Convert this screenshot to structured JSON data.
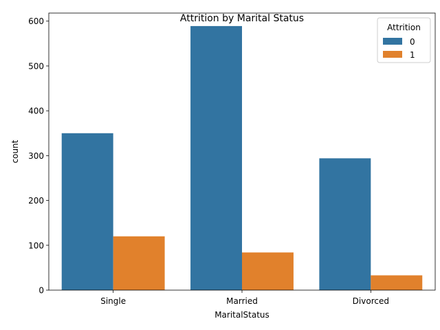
{
  "chart_data": {
    "type": "bar",
    "title": "Attrition by Marital Status",
    "xlabel": "MaritalStatus",
    "ylabel": "count",
    "categories": [
      "Single",
      "Married",
      "Divorced"
    ],
    "series": [
      {
        "name": "0",
        "values": [
          350,
          589,
          294
        ],
        "color": "#3274a1"
      },
      {
        "name": "1",
        "values": [
          120,
          84,
          33
        ],
        "color": "#e1812c"
      }
    ],
    "yticks": [
      0,
      100,
      200,
      300,
      400,
      500,
      600
    ],
    "ylim": [
      0,
      618
    ],
    "legend": {
      "title": "Attrition",
      "placement": "top-right"
    },
    "grid": false
  }
}
